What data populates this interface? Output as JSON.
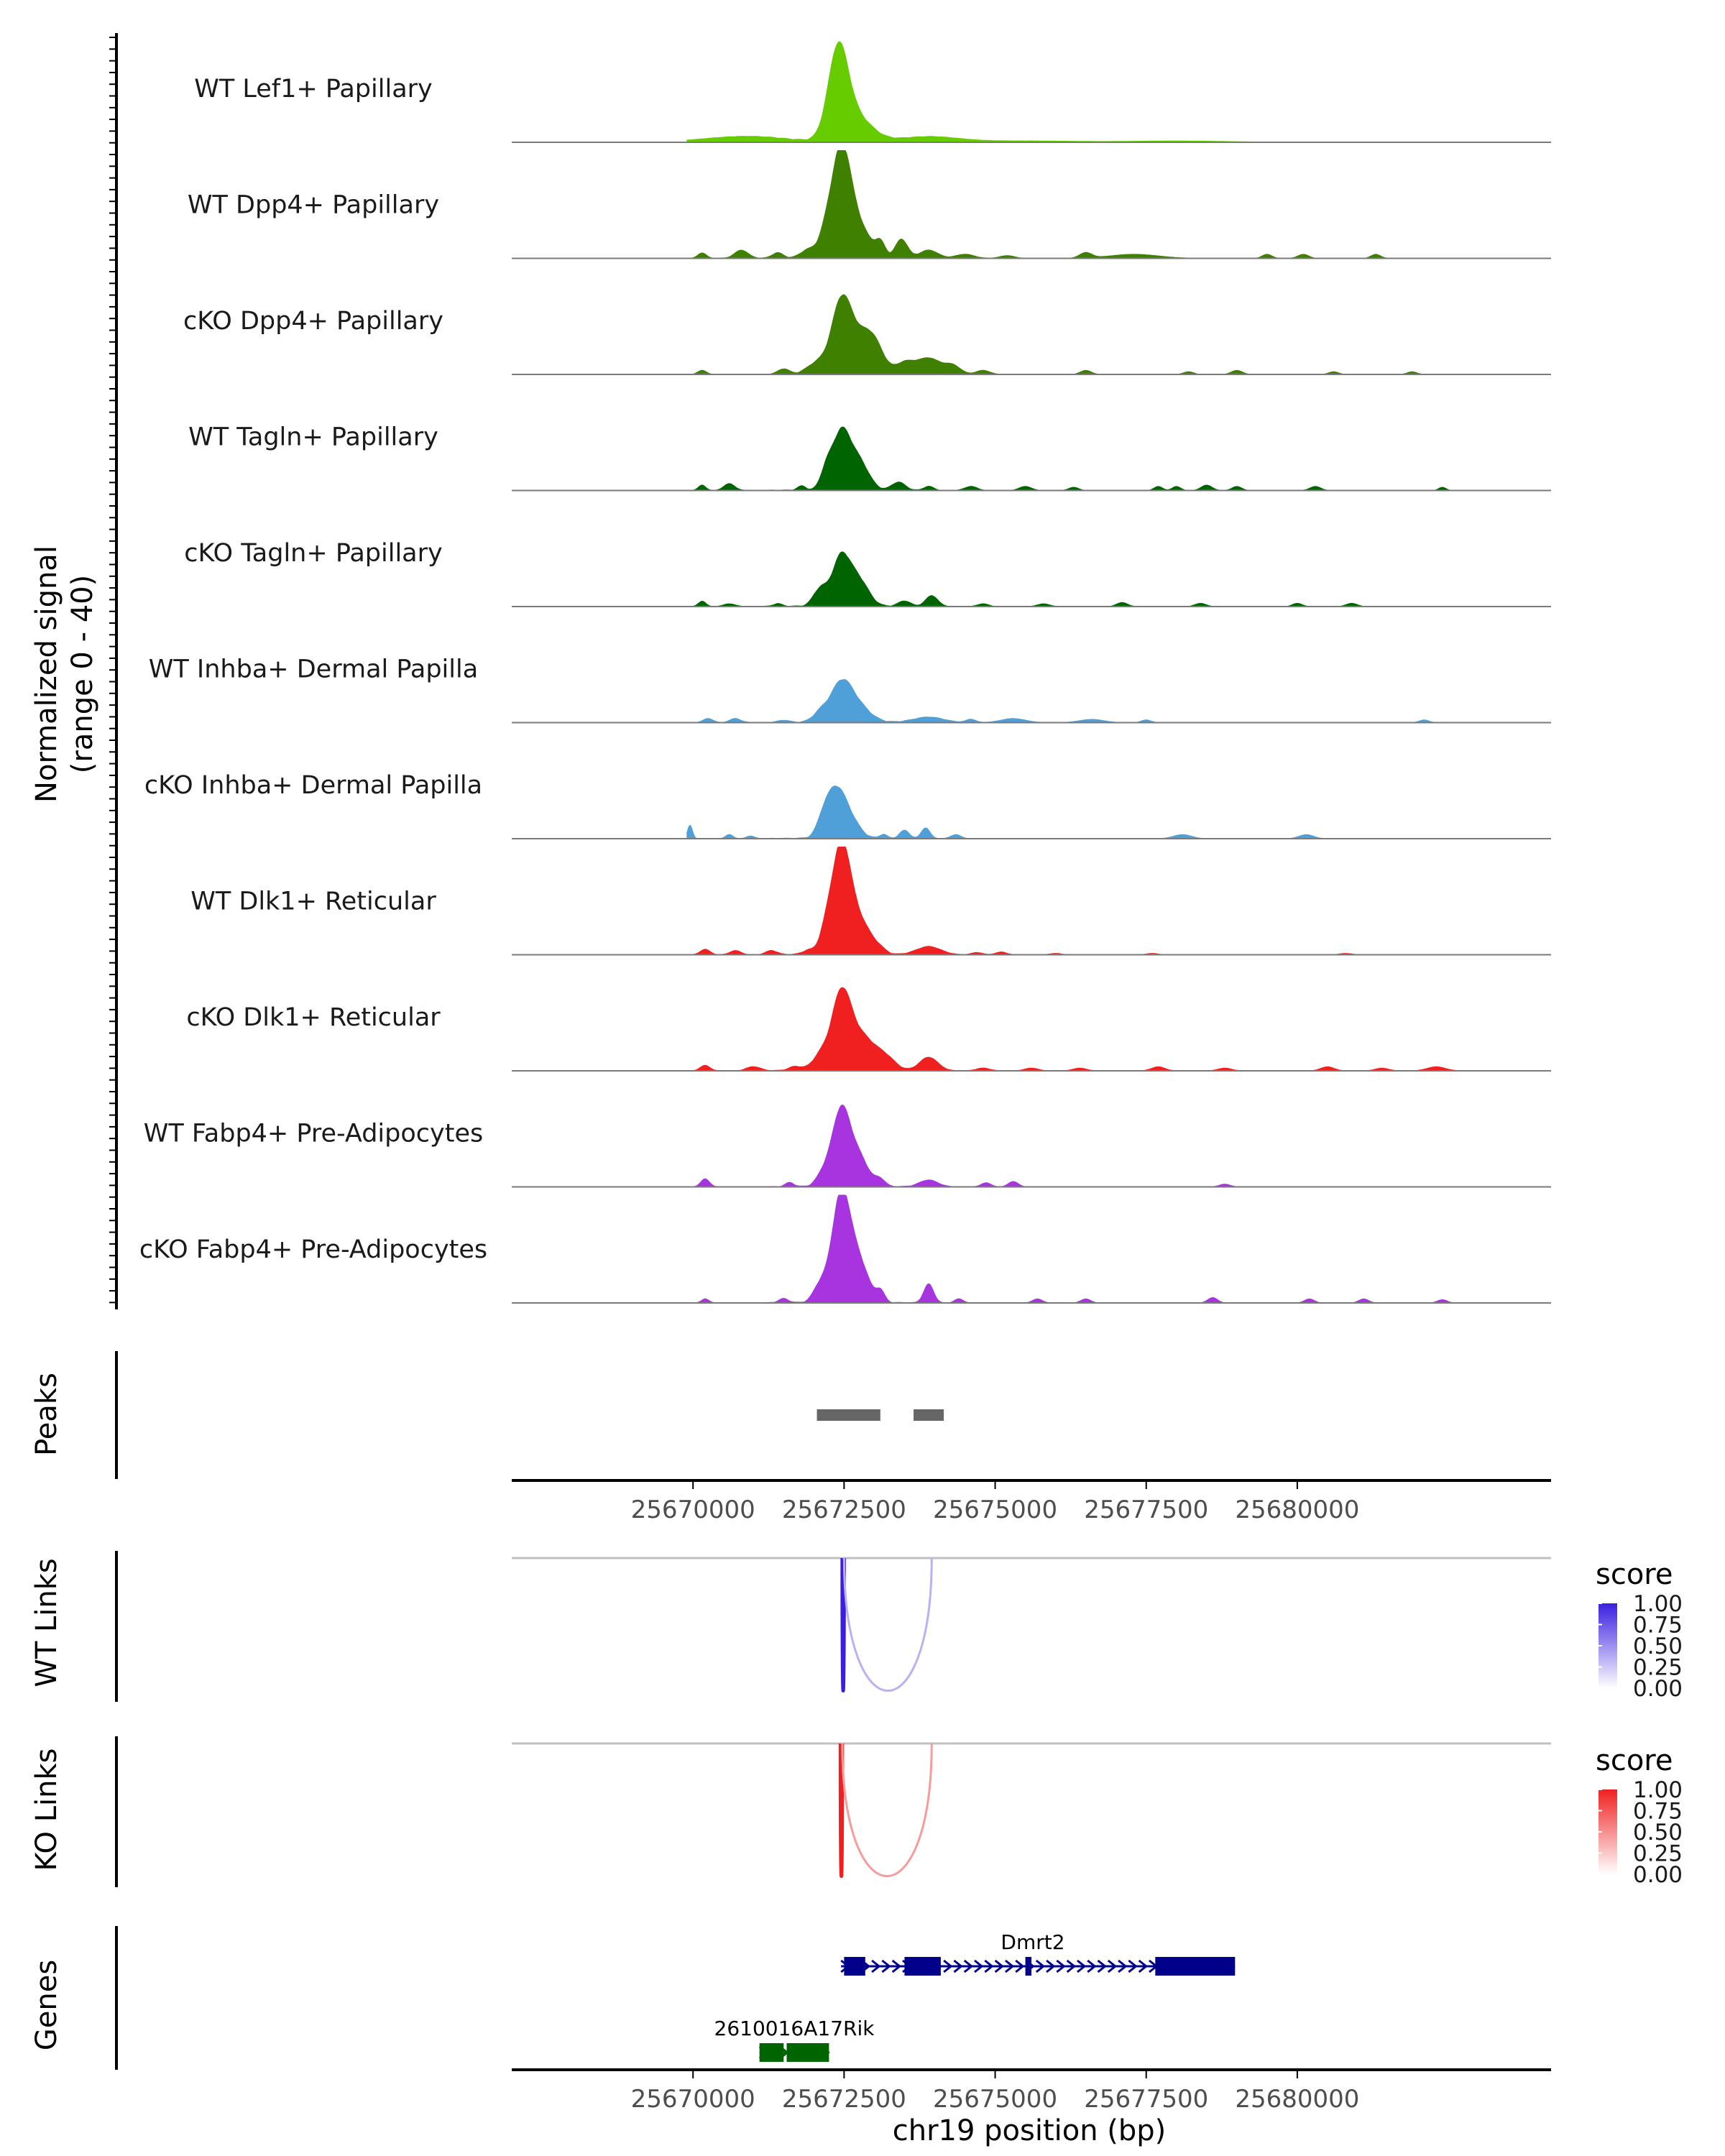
{
  "chart_data": {
    "type": "area",
    "title": "",
    "chromosome": "chr19",
    "x_range": [
      25667000,
      25684200
    ],
    "xlabel": "chr19 position (bp)",
    "x_ticks": [
      25670000,
      25672500,
      25675000,
      25677500,
      25680000
    ],
    "x_tick_labels": [
      "25670000",
      "25672500",
      "25675000",
      "25677500",
      "25680000"
    ],
    "coverage_ylabel_line1": "Normalized signal",
    "coverage_ylabel_line2": "(range 0 - 40)",
    "ylim": [
      0,
      40
    ],
    "tracks": [
      {
        "name": "WT Lef1+ Papillary",
        "color": "#66cc00",
        "peaks": [
          [
            25672400,
            30,
            160
          ],
          [
            25672650,
            10,
            280
          ],
          [
            25670600,
            1.5,
            600
          ],
          [
            25673900,
            2,
            500
          ],
          [
            25671200,
            1,
            500
          ],
          [
            25675500,
            0.5,
            800
          ],
          [
            25678000,
            0.5,
            800
          ]
        ]
      },
      {
        "name": "WT Dpp4+ Papillary",
        "color": "#3f8000",
        "peaks": [
          [
            25672450,
            37,
            150
          ],
          [
            25672720,
            12,
            200
          ],
          [
            25672200,
            8,
            120
          ],
          [
            25673450,
            7,
            100
          ],
          [
            25673100,
            5,
            80
          ],
          [
            25670150,
            2,
            70
          ],
          [
            25670800,
            3,
            110
          ],
          [
            25671400,
            2,
            90
          ],
          [
            25671900,
            3,
            120
          ],
          [
            25673900,
            3,
            150
          ],
          [
            25674500,
            1.5,
            150
          ],
          [
            25675200,
            1,
            120
          ],
          [
            25676500,
            2,
            100
          ],
          [
            25677300,
            1.5,
            400
          ],
          [
            25679500,
            1.5,
            80
          ],
          [
            25680100,
            1.5,
            90
          ],
          [
            25681300,
            1.5,
            80
          ]
        ]
      },
      {
        "name": "cKO Dpp4+ Papillary",
        "color": "#3f8000",
        "peaks": [
          [
            25672450,
            24,
            160
          ],
          [
            25672750,
            12,
            220
          ],
          [
            25673000,
            8,
            160
          ],
          [
            25673500,
            4,
            150
          ],
          [
            25673900,
            6,
            200
          ],
          [
            25674300,
            3,
            130
          ],
          [
            25670150,
            1.5,
            70
          ],
          [
            25671500,
            2,
            90
          ],
          [
            25672050,
            4,
            160
          ],
          [
            25674800,
            1.5,
            110
          ],
          [
            25676500,
            1.5,
            90
          ],
          [
            25678200,
            1,
            80
          ],
          [
            25679000,
            1.5,
            90
          ],
          [
            25680600,
            1,
            80
          ],
          [
            25681900,
            1,
            80
          ]
        ]
      },
      {
        "name": "WT Tagln+ Papillary",
        "color": "#006400",
        "peaks": [
          [
            25672450,
            21,
            150
          ],
          [
            25672750,
            10,
            160
          ],
          [
            25672200,
            6,
            90
          ],
          [
            25673400,
            3,
            110
          ],
          [
            25670150,
            2,
            60
          ],
          [
            25670600,
            2.5,
            90
          ],
          [
            25671800,
            1.5,
            70
          ],
          [
            25673900,
            1.5,
            80
          ],
          [
            25674600,
            1.5,
            100
          ],
          [
            25675500,
            1.5,
            100
          ],
          [
            25676300,
            1.2,
            80
          ],
          [
            25677700,
            1.5,
            70
          ],
          [
            25678000,
            1.5,
            70
          ],
          [
            25678500,
            2,
            90
          ],
          [
            25679000,
            1.5,
            80
          ],
          [
            25680300,
            1.5,
            90
          ],
          [
            25682400,
            1.2,
            60
          ]
        ]
      },
      {
        "name": "cKO Tagln+ Papillary",
        "color": "#006400",
        "peaks": [
          [
            25672450,
            18,
            150
          ],
          [
            25672750,
            9,
            160
          ],
          [
            25672100,
            6,
            110
          ],
          [
            25673950,
            4,
            100
          ],
          [
            25673500,
            2,
            100
          ],
          [
            25670150,
            2,
            60
          ],
          [
            25670600,
            1,
            90
          ],
          [
            25671400,
            1,
            70
          ],
          [
            25674800,
            1,
            90
          ],
          [
            25675800,
            1,
            100
          ],
          [
            25677100,
            1.5,
            90
          ],
          [
            25678400,
            1.2,
            90
          ],
          [
            25680000,
            1.2,
            80
          ],
          [
            25680900,
            1.2,
            90
          ]
        ]
      },
      {
        "name": "WT Inhba+ Dermal Papilla",
        "color": "#4f9fd9",
        "peaks": [
          [
            25672450,
            14,
            180
          ],
          [
            25672750,
            5,
            200
          ],
          [
            25672100,
            3,
            120
          ],
          [
            25670250,
            1.5,
            80
          ],
          [
            25670700,
            1.5,
            90
          ],
          [
            25671500,
            0.8,
            90
          ],
          [
            25673900,
            2,
            250
          ],
          [
            25674600,
            1.2,
            80
          ],
          [
            25675300,
            1.5,
            200
          ],
          [
            25676600,
            1.2,
            200
          ],
          [
            25677500,
            1,
            80
          ],
          [
            25682100,
            1,
            80
          ]
        ]
      },
      {
        "name": "cKO Inhba+ Dermal Papilla",
        "color": "#4f9fd9",
        "peaks": [
          [
            25672350,
            17,
            160
          ],
          [
            25672600,
            6,
            160
          ],
          [
            25672150,
            4,
            100
          ],
          [
            25669950,
            5,
            40
          ],
          [
            25670600,
            1.5,
            60
          ],
          [
            25670950,
            1,
            60
          ],
          [
            25673150,
            1.5,
            60
          ],
          [
            25673500,
            3,
            80
          ],
          [
            25673850,
            4,
            70
          ],
          [
            25674350,
            1.5,
            80
          ],
          [
            25678100,
            1.5,
            150
          ],
          [
            25680150,
            1.5,
            120
          ]
        ]
      },
      {
        "name": "WT Dlk1+ Reticular",
        "color": "#f02020",
        "peaks": [
          [
            25672450,
            38,
            150
          ],
          [
            25672750,
            12,
            200
          ],
          [
            25672200,
            7,
            110
          ],
          [
            25673900,
            3,
            200
          ],
          [
            25670200,
            2,
            80
          ],
          [
            25670700,
            1.5,
            90
          ],
          [
            25671300,
            1.5,
            90
          ],
          [
            25671900,
            1.5,
            90
          ],
          [
            25673100,
            1,
            90
          ],
          [
            25674700,
            0.8,
            90
          ],
          [
            25675100,
            1,
            90
          ],
          [
            25676000,
            0.5,
            90
          ],
          [
            25677600,
            0.5,
            90
          ],
          [
            25680800,
            0.5,
            100
          ]
        ]
      },
      {
        "name": "cKO Dlk1+ Reticular",
        "color": "#f02020",
        "peaks": [
          [
            25672450,
            27,
            160
          ],
          [
            25672800,
            12,
            220
          ],
          [
            25673200,
            4,
            160
          ],
          [
            25673900,
            5,
            150
          ],
          [
            25672100,
            5,
            130
          ],
          [
            25670200,
            2,
            80
          ],
          [
            25671000,
            1.5,
            110
          ],
          [
            25671700,
            1.5,
            110
          ],
          [
            25674800,
            1,
            110
          ],
          [
            25675600,
            1,
            110
          ],
          [
            25676400,
            1,
            110
          ],
          [
            25677700,
            1.5,
            110
          ],
          [
            25678800,
            1,
            110
          ],
          [
            25680500,
            1.5,
            110
          ],
          [
            25681400,
            1,
            110
          ],
          [
            25682300,
            1.5,
            150
          ]
        ]
      },
      {
        "name": "WT Fabp4+ Pre-Adipocytes",
        "color": "#a834e0",
        "peaks": [
          [
            25672450,
            28,
            150
          ],
          [
            25672750,
            10,
            160
          ],
          [
            25672150,
            4,
            110
          ],
          [
            25670200,
            3,
            70
          ],
          [
            25671600,
            1.5,
            70
          ],
          [
            25673100,
            2.5,
            80
          ],
          [
            25673900,
            2.5,
            150
          ],
          [
            25674850,
            1.5,
            80
          ],
          [
            25675300,
            2,
            80
          ],
          [
            25678800,
            1,
            90
          ]
        ]
      },
      {
        "name": "cKO Fabp4+ Pre-Adipocytes",
        "color": "#a834e0",
        "peaks": [
          [
            25672450,
            40,
            150
          ],
          [
            25672750,
            14,
            160
          ],
          [
            25672100,
            6,
            110
          ],
          [
            25673100,
            4,
            70
          ],
          [
            25673900,
            7,
            80
          ],
          [
            25674400,
            1.5,
            70
          ],
          [
            25670200,
            1.5,
            60
          ],
          [
            25671500,
            1.5,
            80
          ],
          [
            25675700,
            1.5,
            80
          ],
          [
            25676500,
            1.5,
            80
          ],
          [
            25678600,
            2,
            80
          ],
          [
            25680200,
            1.5,
            80
          ],
          [
            25681100,
            1.5,
            80
          ],
          [
            25682400,
            1.2,
            80
          ]
        ]
      }
    ],
    "peaks_track_label": "Peaks",
    "peak_regions": [
      [
        25672050,
        25673100
      ],
      [
        25673650,
        25674150
      ]
    ],
    "wt_links_label": "WT Links",
    "ko_links_label": "KO Links",
    "links": {
      "wt": [
        {
          "start": 25672470,
          "end": 25672500,
          "score": 1.0
        },
        {
          "start": 25672500,
          "end": 25673950,
          "score": 0.35
        }
      ],
      "ko": [
        {
          "start": 25672440,
          "end": 25672470,
          "score": 1.0
        },
        {
          "start": 25672470,
          "end": 25673950,
          "score": 0.45
        }
      ]
    },
    "legend_wt": {
      "title": "score",
      "labels": [
        "1.00",
        "0.75",
        "0.50",
        "0.25",
        "0.00"
      ],
      "low_color": "#ffffff",
      "high_color": "#3a1fe0"
    },
    "legend_ko": {
      "title": "score",
      "labels": [
        "1.00",
        "0.75",
        "0.50",
        "0.25",
        "0.00"
      ],
      "low_color": "#ffffff",
      "high_color": "#f02020"
    },
    "genes_track_label": "Genes",
    "genes": [
      {
        "name": "Dmrt2",
        "strand": "+",
        "color": "#00008b",
        "start": 25672450,
        "end": 25678970,
        "exons": [
          [
            25672500,
            25672850
          ],
          [
            25673500,
            25674100
          ],
          [
            25675500,
            25675600
          ],
          [
            25677650,
            25678970
          ]
        ]
      },
      {
        "name": "2610016A17Rik",
        "strand": "+",
        "color": "#006400",
        "start": 25671100,
        "end": 25672250,
        "exons": [
          [
            25671100,
            25671500
          ],
          [
            25671550,
            25672250
          ]
        ]
      }
    ]
  }
}
